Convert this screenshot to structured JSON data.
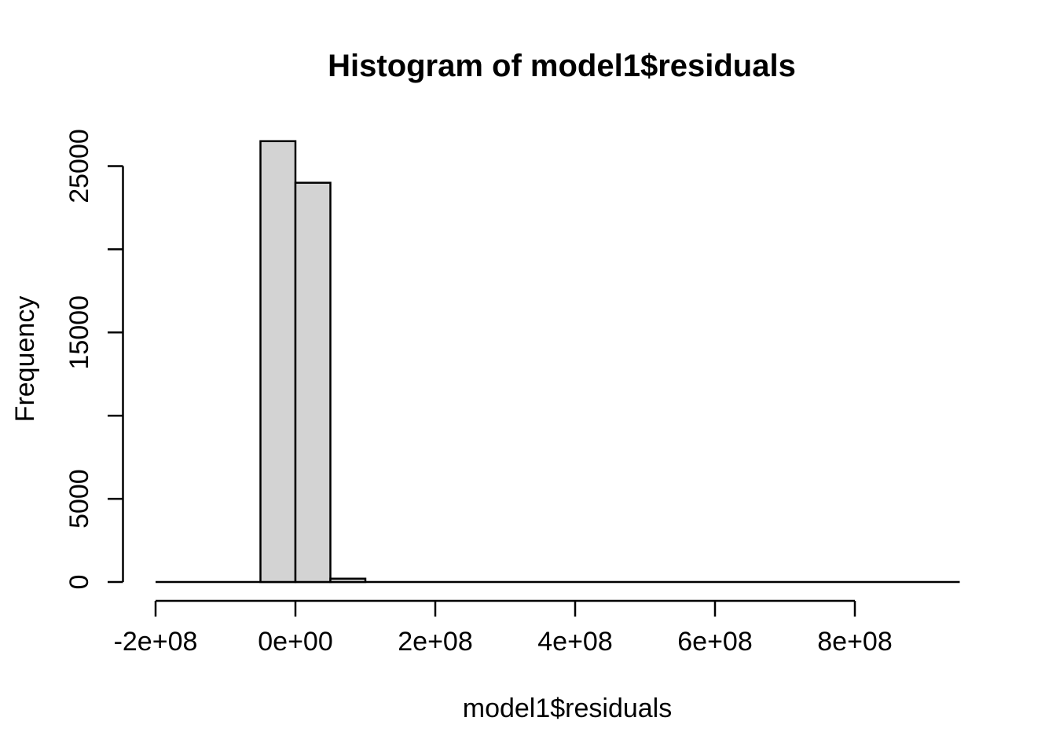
{
  "chart_data": {
    "type": "bar",
    "subtype": "histogram",
    "title": "Histogram of model1$residuals",
    "xlabel": "model1$residuals",
    "ylabel": "Frequency",
    "background_color": "#ffffff",
    "bar_fill_color": "#d3d3d3",
    "bar_border_color": "#000000",
    "axis_color": "#000000",
    "grid": false,
    "legend": false,
    "xlim": [
      -200000000,
      950000000
    ],
    "ylim": [
      0,
      26500
    ],
    "bins": [
      {
        "x0": -50000000,
        "x1": 0,
        "count": 26500
      },
      {
        "x0": 0,
        "x1": 50000000,
        "count": 24000
      },
      {
        "x0": 50000000,
        "x1": 100000000,
        "count": 200
      }
    ],
    "baseline_extent": [
      -200000000,
      950000000
    ],
    "xticks": [
      {
        "value": -200000000,
        "label": "-2e+08"
      },
      {
        "value": 0,
        "label": "0e+00"
      },
      {
        "value": 200000000,
        "label": "2e+08"
      },
      {
        "value": 400000000,
        "label": "4e+08"
      },
      {
        "value": 600000000,
        "label": "6e+08"
      },
      {
        "value": 800000000,
        "label": "8e+08"
      }
    ],
    "yticks": [
      {
        "value": 0,
        "label": "0"
      },
      {
        "value": 5000,
        "label": "5000"
      },
      {
        "value": 10000,
        "label": ""
      },
      {
        "value": 15000,
        "label": "15000"
      },
      {
        "value": 20000,
        "label": ""
      },
      {
        "value": 25000,
        "label": "25000"
      }
    ]
  }
}
